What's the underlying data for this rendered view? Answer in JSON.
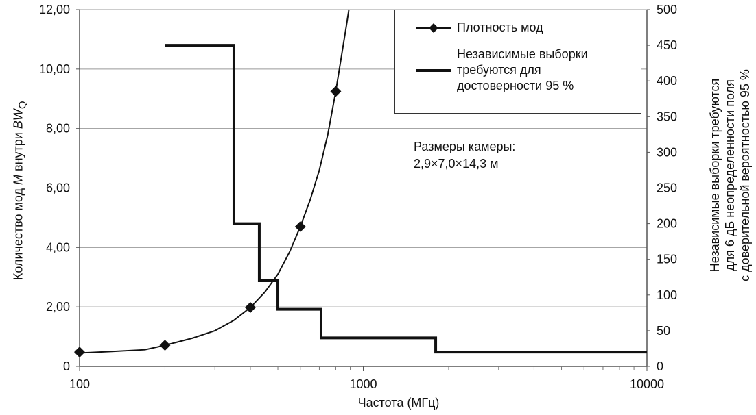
{
  "chart_data": {
    "type": "line",
    "x_scale": "log",
    "xlim": [
      100,
      10000
    ],
    "xlabel": "Частота (МГц)",
    "x_ticks": [
      "100",
      "1000",
      "10000"
    ],
    "ylabel_left": {
      "prefix": "Количество мод ",
      "m": "M",
      "middle": " внутри ",
      "bw": "BW",
      "sub": "Q"
    },
    "ylim_left": [
      0,
      12
    ],
    "y_ticks_left": [
      "0",
      "2,00",
      "4,00",
      "6,00",
      "8,00",
      "10,00",
      "12,00"
    ],
    "ylabel_right": [
      "Независимые выборки требуются",
      "для 6 дБ неопределенности поля",
      "с доверительной вероятностью 95 %"
    ],
    "ylim_right": [
      0,
      500
    ],
    "y_ticks_right": [
      "0",
      "50",
      "100",
      "150",
      "200",
      "250",
      "300",
      "350",
      "400",
      "450",
      "500"
    ],
    "grid": "horizontal",
    "series": [
      {
        "name": "Плотность мод",
        "axis": "left",
        "marker": "diamond",
        "points": [
          [
            100,
            0.48
          ],
          [
            200,
            0.71
          ],
          [
            400,
            1.98
          ],
          [
            600,
            4.7
          ],
          [
            800,
            9.25
          ]
        ],
        "curve": [
          [
            100,
            0.45
          ],
          [
            130,
            0.5
          ],
          [
            170,
            0.56
          ],
          [
            200,
            0.71
          ],
          [
            250,
            0.95
          ],
          [
            300,
            1.2
          ],
          [
            350,
            1.55
          ],
          [
            400,
            1.98
          ],
          [
            450,
            2.5
          ],
          [
            500,
            3.1
          ],
          [
            550,
            3.85
          ],
          [
            600,
            4.7
          ],
          [
            650,
            5.6
          ],
          [
            700,
            6.6
          ],
          [
            750,
            7.8
          ],
          [
            800,
            9.25
          ],
          [
            840,
            10.5
          ],
          [
            870,
            11.4
          ],
          [
            890,
            12
          ]
        ]
      },
      {
        "name": "Независимые выборки требуются для достоверности 95 %",
        "legend_lines": [
          "Независимые выборки",
          "требуются для",
          "достоверности 95 %"
        ],
        "axis": "right",
        "type": "step",
        "points": [
          [
            200,
            450
          ],
          [
            350,
            450
          ],
          [
            350,
            200
          ],
          [
            430,
            200
          ],
          [
            430,
            120
          ],
          [
            500,
            120
          ],
          [
            500,
            80
          ],
          [
            710,
            80
          ],
          [
            710,
            40
          ],
          [
            1800,
            40
          ],
          [
            1800,
            20
          ],
          [
            10000,
            20
          ]
        ]
      }
    ],
    "annotation": [
      "Размеры камеры:",
      "2,9×7,0×14,3 м"
    ],
    "legend_placement": "top-right"
  },
  "colors": {
    "line": "#111111",
    "grid": "#999999"
  }
}
